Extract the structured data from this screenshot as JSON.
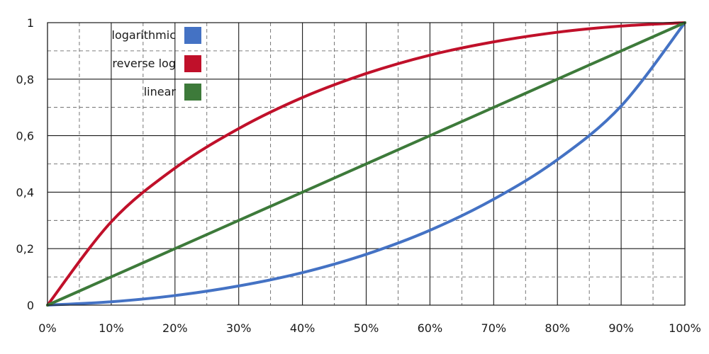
{
  "chart_data": {
    "type": "line",
    "title": "",
    "xlabel": "",
    "ylabel": "",
    "xlim": [
      0,
      100
    ],
    "ylim": [
      0,
      1
    ],
    "x_ticks": [
      0,
      10,
      20,
      30,
      40,
      50,
      60,
      70,
      80,
      90,
      100
    ],
    "x_tick_labels": [
      "0%",
      "10%",
      "20%",
      "30%",
      "40%",
      "50%",
      "60%",
      "70%",
      "80%",
      "90%",
      "100%"
    ],
    "y_ticks": [
      0,
      0.2,
      0.4,
      0.6,
      0.8,
      1
    ],
    "y_tick_labels": [
      "0",
      "0,2",
      "0,4",
      "0,6",
      "0,8",
      "1"
    ],
    "grid": true,
    "legend_position": "top-left",
    "series": [
      {
        "name": "logarithmic",
        "color": "#4472c4",
        "x": [
          0,
          10,
          20,
          30,
          40,
          50,
          60,
          70,
          80,
          90,
          100
        ],
        "y": [
          0,
          0.012,
          0.034,
          0.068,
          0.115,
          0.18,
          0.265,
          0.375,
          0.515,
          0.705,
          1
        ]
      },
      {
        "name": "reverse log",
        "color": "#c0102a",
        "x": [
          0,
          10,
          20,
          30,
          40,
          50,
          60,
          70,
          80,
          90,
          100
        ],
        "y": [
          0,
          0.295,
          0.485,
          0.625,
          0.735,
          0.82,
          0.885,
          0.932,
          0.966,
          0.988,
          1
        ]
      },
      {
        "name": "linear",
        "color": "#3d7a3a",
        "x": [
          0,
          10,
          20,
          30,
          40,
          50,
          60,
          70,
          80,
          90,
          100
        ],
        "y": [
          0,
          0.1,
          0.2,
          0.3,
          0.4,
          0.5,
          0.6,
          0.7,
          0.8,
          0.9,
          1
        ]
      }
    ]
  }
}
